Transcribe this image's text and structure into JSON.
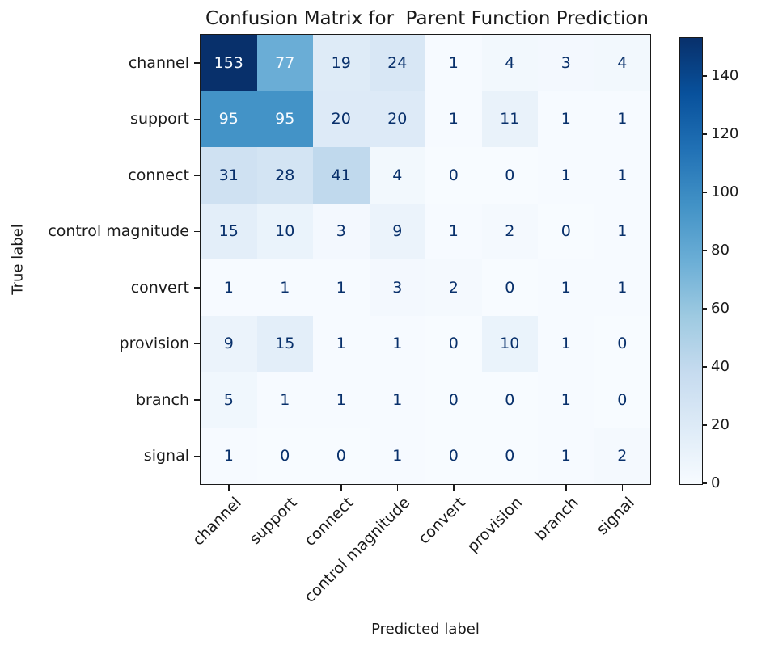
{
  "chart_data": {
    "type": "heatmap",
    "title": "Confusion Matrix for  Parent Function Prediction",
    "xlabel": "Predicted label",
    "ylabel": "True label",
    "x_categories": [
      "channel",
      "support",
      "connect",
      "control magnitude",
      "convert",
      "provision",
      "branch",
      "signal"
    ],
    "y_categories": [
      "channel",
      "support",
      "connect",
      "control magnitude",
      "convert",
      "provision",
      "branch",
      "signal"
    ],
    "matrix": [
      [
        153,
        77,
        19,
        24,
        1,
        4,
        3,
        4
      ],
      [
        95,
        95,
        20,
        20,
        1,
        11,
        1,
        1
      ],
      [
        31,
        28,
        41,
        4,
        0,
        0,
        1,
        1
      ],
      [
        15,
        10,
        3,
        9,
        1,
        2,
        0,
        1
      ],
      [
        1,
        1,
        1,
        3,
        2,
        0,
        1,
        1
      ],
      [
        9,
        15,
        1,
        1,
        0,
        10,
        1,
        0
      ],
      [
        5,
        1,
        1,
        1,
        0,
        0,
        1,
        0
      ],
      [
        1,
        0,
        0,
        1,
        0,
        0,
        1,
        2
      ]
    ],
    "vmin": 0,
    "vmax": 153,
    "colorbar_ticks": [
      0,
      20,
      40,
      60,
      80,
      100,
      120,
      140
    ],
    "colormap": "Blues",
    "cmap_stops": [
      "#f7fbff",
      "#deebf7",
      "#c6dbef",
      "#9ecae1",
      "#6baed6",
      "#4292c6",
      "#2171b5",
      "#08519c",
      "#08306b"
    ],
    "grid": false,
    "legend_position": "right-colorbar",
    "colors": {
      "text_dark": "#08306b",
      "text_light": "#f7fbff",
      "axis": "#1a1a1a"
    }
  }
}
